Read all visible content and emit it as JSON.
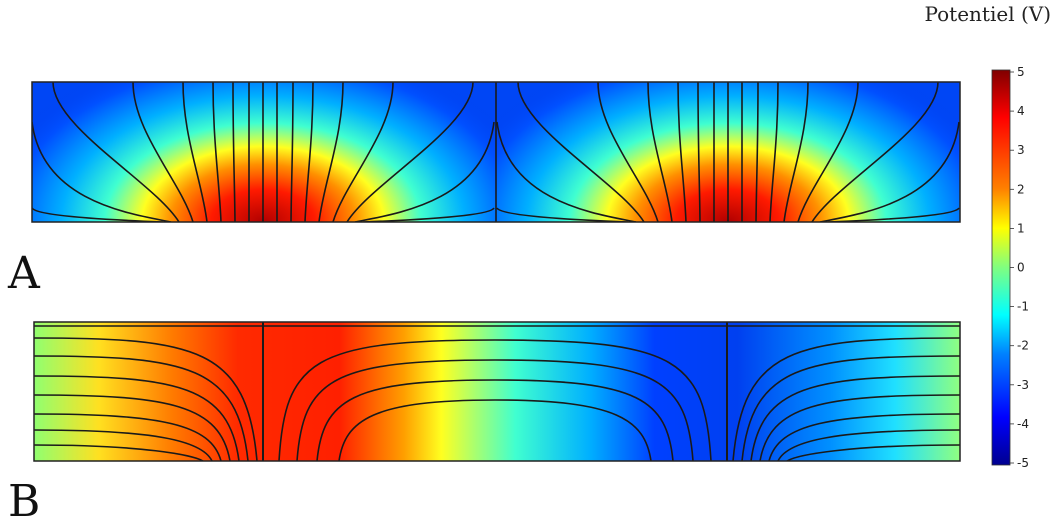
{
  "colorbar": {
    "title": "Potentiel (V)",
    "ticks": [
      "5",
      "4",
      "3",
      "2",
      "1",
      "0",
      "-1",
      "-2",
      "-3",
      "-4",
      "-5"
    ],
    "min": -5,
    "max": 5,
    "colormap": [
      "#00008f",
      "#0000ff",
      "#0080ff",
      "#00ffff",
      "#80ff80",
      "#ffff00",
      "#ff8000",
      "#ff0000",
      "#800000"
    ]
  },
  "panels": {
    "a": {
      "label": "A"
    },
    "b": {
      "label": "B"
    }
  }
}
